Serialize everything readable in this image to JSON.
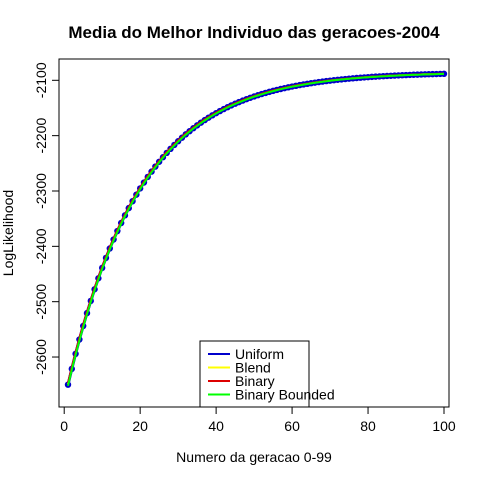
{
  "chart_data": {
    "type": "line",
    "title": "Media do Melhor Individuo das geracoes-2004",
    "xlabel": "Numero da geracao 0-99",
    "ylabel": "LogLikelihood",
    "xlim": [
      1,
      100
    ],
    "ylim": [
      -2665,
      -2085
    ],
    "x_ticks": [
      0,
      20,
      40,
      60,
      80,
      100
    ],
    "y_ticks": [
      -2600,
      -2500,
      -2400,
      -2300,
      -2200,
      -2100
    ],
    "grid": false,
    "legend_position": "bottom-center",
    "curve_model": {
      "asymptote": -2085,
      "start_value": -2650,
      "decay": 0.052
    },
    "series": [
      {
        "name": "Uniform",
        "color": "#0000cc",
        "style": "points-line",
        "offset": 0
      },
      {
        "name": "Blend",
        "color": "#ffff00",
        "style": "line",
        "offset": 1
      },
      {
        "name": "Binary",
        "color": "#dd0000",
        "style": "line",
        "offset": 3
      },
      {
        "name": "Binary Bounded",
        "color": "#00ff00",
        "style": "line",
        "offset": -2
      }
    ]
  }
}
